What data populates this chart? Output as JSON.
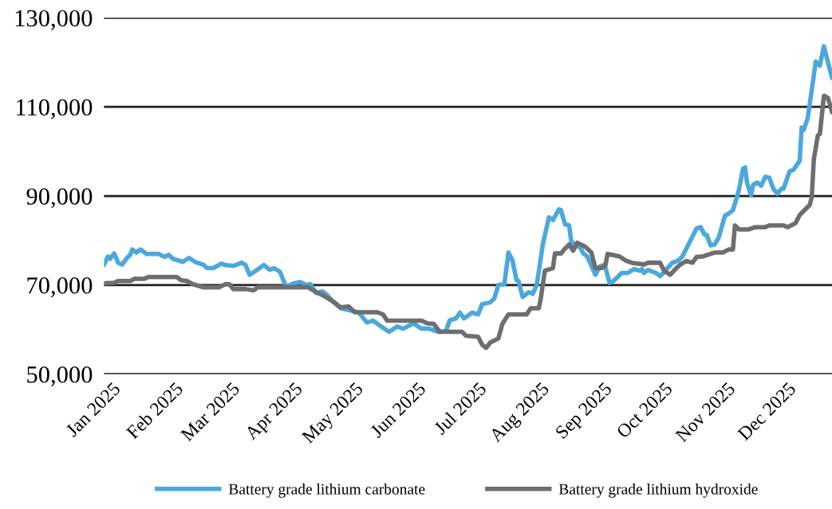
{
  "chart_data": {
    "type": "line",
    "xlim": [
      "2024-12-28",
      "2025-12-23"
    ],
    "ylim": [
      50000,
      130000
    ],
    "yticks": [
      {
        "value": 50000,
        "label": "50,000"
      },
      {
        "value": 70000,
        "label": "70,000"
      },
      {
        "value": 90000,
        "label": "90,000"
      },
      {
        "value": 110000,
        "label": "110,000"
      },
      {
        "value": 130000,
        "label": "130,000"
      }
    ],
    "xticks": [
      {
        "value": "2025-01-01",
        "label": "Jan 2025"
      },
      {
        "value": "2025-02-01",
        "label": "Feb 2025"
      },
      {
        "value": "2025-03-01",
        "label": "Mar 2025"
      },
      {
        "value": "2025-04-01",
        "label": "Apr 2025"
      },
      {
        "value": "2025-05-01",
        "label": "May 2025"
      },
      {
        "value": "2025-06-01",
        "label": "Jun 2025"
      },
      {
        "value": "2025-07-01",
        "label": "Jul 2025"
      },
      {
        "value": "2025-08-01",
        "label": "Aug 2025"
      },
      {
        "value": "2025-09-01",
        "label": "Sep 2025"
      },
      {
        "value": "2025-10-01",
        "label": "Oct 2025"
      },
      {
        "value": "2025-11-01",
        "label": "Nov 2025"
      },
      {
        "value": "2025-12-01",
        "label": "Dec 2025"
      }
    ],
    "grid": "y",
    "legend": "bottom",
    "marker": "none",
    "line_style": "solid",
    "series": [
      {
        "name": "Battery grade lithium carbonate",
        "color": "#4aa8de",
        "x": [
          "2024-12-28",
          "2024-12-30",
          "2024-12-31",
          "2025-01-02",
          "2025-01-04",
          "2025-01-06",
          "2025-01-08",
          "2025-01-10",
          "2025-01-11",
          "2025-01-13",
          "2025-01-15",
          "2025-01-18",
          "2025-01-24",
          "2025-01-27",
          "2025-01-29",
          "2025-01-31",
          "2025-02-05",
          "2025-02-08",
          "2025-02-11",
          "2025-02-15",
          "2025-02-17",
          "2025-02-20",
          "2025-02-24",
          "2025-02-26",
          "2025-03-02",
          "2025-03-06",
          "2025-03-08",
          "2025-03-10",
          "2025-03-13",
          "2025-03-17",
          "2025-03-20",
          "2025-03-22",
          "2025-03-25",
          "2025-03-28",
          "2025-04-01",
          "2025-04-04",
          "2025-04-07",
          "2025-04-09",
          "2025-04-12",
          "2025-04-15",
          "2025-04-17",
          "2025-04-20",
          "2025-04-24",
          "2025-04-29",
          "2025-05-03",
          "2025-05-07",
          "2025-05-10",
          "2025-05-14",
          "2025-05-18",
          "2025-05-22",
          "2025-05-25",
          "2025-05-30",
          "2025-06-03",
          "2025-06-07",
          "2025-06-11",
          "2025-06-15",
          "2025-06-17",
          "2025-06-20",
          "2025-06-22",
          "2025-06-24",
          "2025-06-28",
          "2025-07-01",
          "2025-07-03",
          "2025-07-07",
          "2025-07-09",
          "2025-07-11",
          "2025-07-14",
          "2025-07-16",
          "2025-07-18",
          "2025-07-20",
          "2025-07-21",
          "2025-07-23",
          "2025-07-26",
          "2025-07-28",
          "2025-07-30",
          "2025-08-02",
          "2025-08-05",
          "2025-08-07",
          "2025-08-10",
          "2025-08-11",
          "2025-08-13",
          "2025-08-15",
          "2025-08-16",
          "2025-08-18",
          "2025-08-20",
          "2025-08-22",
          "2025-08-24",
          "2025-08-28",
          "2025-08-30",
          "2025-09-01",
          "2025-09-02",
          "2025-09-04",
          "2025-09-06",
          "2025-09-10",
          "2025-09-13",
          "2025-09-16",
          "2025-09-19",
          "2025-09-20",
          "2025-09-21",
          "2025-09-23",
          "2025-09-27",
          "2025-09-29",
          "2025-10-01",
          "2025-10-05",
          "2025-10-08",
          "2025-10-10",
          "2025-10-12",
          "2025-10-14",
          "2025-10-17",
          "2025-10-19",
          "2025-10-21",
          "2025-10-22",
          "2025-10-24",
          "2025-10-26",
          "2025-10-28",
          "2025-10-31",
          "2025-11-02",
          "2025-11-04",
          "2025-11-06",
          "2025-11-07",
          "2025-11-09",
          "2025-11-10",
          "2025-11-11",
          "2025-11-13",
          "2025-11-14",
          "2025-11-16",
          "2025-11-18",
          "2025-11-20",
          "2025-11-22",
          "2025-11-24",
          "2025-11-26",
          "2025-11-28",
          "2025-11-29",
          "2025-12-02",
          "2025-12-04",
          "2025-12-07",
          "2025-12-08",
          "2025-12-09",
          "2025-12-11",
          "2025-12-15",
          "2025-12-17",
          "2025-12-19",
          "2025-12-21",
          "2025-12-23"
        ],
        "values": [
          74600,
          76400,
          75900,
          77100,
          75000,
          74600,
          75900,
          76800,
          78000,
          77300,
          78000,
          77000,
          77000,
          76300,
          76800,
          75900,
          75200,
          76100,
          75200,
          74600,
          73800,
          73800,
          74800,
          74500,
          74300,
          75000,
          74500,
          72300,
          73200,
          74500,
          73400,
          73800,
          73000,
          69600,
          70400,
          70700,
          70000,
          70200,
          68200,
          68600,
          67900,
          66400,
          64800,
          64300,
          63800,
          61600,
          62000,
          60700,
          59500,
          60700,
          60200,
          61400,
          60200,
          60200,
          59500,
          59600,
          62100,
          62500,
          63800,
          62500,
          63800,
          63400,
          65700,
          66100,
          67000,
          70000,
          70200,
          77300,
          75500,
          71100,
          70900,
          67300,
          68400,
          68000,
          70000,
          79100,
          85200,
          84600,
          87000,
          86800,
          83600,
          83400,
          80000,
          78600,
          78900,
          77100,
          76400,
          72300,
          74100,
          74500,
          73800,
          70500,
          70900,
          72700,
          72700,
          73600,
          73200,
          73600,
          72700,
          73400,
          72700,
          72000,
          72900,
          75000,
          75500,
          76400,
          78200,
          80000,
          82700,
          83000,
          81300,
          81300,
          78900,
          79100,
          80700,
          85500,
          86100,
          86800,
          89800,
          91400,
          96100,
          96400,
          92900,
          90200,
          92500,
          93000,
          92300,
          94300,
          94100,
          91600,
          90500,
          91600,
          91600,
          95500,
          95900,
          97900,
          105400,
          104800,
          107500,
          120200,
          119300,
          123600,
          120000,
          116600
        ]
      },
      {
        "name": "Battery grade lithium hydroxide",
        "color": "#6d6e70",
        "x": [
          "2024-12-29",
          "2025-01-02",
          "2025-01-04",
          "2025-01-10",
          "2025-01-12",
          "2025-01-17",
          "2025-01-19",
          "2025-02-02",
          "2025-02-04",
          "2025-02-07",
          "2025-02-10",
          "2025-02-15",
          "2025-02-23",
          "2025-02-26",
          "2025-02-28",
          "2025-03-02",
          "2025-03-08",
          "2025-03-12",
          "2025-03-14",
          "2025-04-08",
          "2025-04-12",
          "2025-04-16",
          "2025-04-21",
          "2025-04-24",
          "2025-04-28",
          "2025-05-01",
          "2025-05-12",
          "2025-05-15",
          "2025-05-17",
          "2025-06-03",
          "2025-06-06",
          "2025-06-09",
          "2025-06-12",
          "2025-06-23",
          "2025-06-25",
          "2025-07-01",
          "2025-07-03",
          "2025-07-05",
          "2025-07-07",
          "2025-07-11",
          "2025-07-13",
          "2025-07-16",
          "2025-07-25",
          "2025-07-27",
          "2025-07-31",
          "2025-08-01",
          "2025-08-03",
          "2025-08-07",
          "2025-08-08",
          "2025-08-11",
          "2025-08-13",
          "2025-08-15",
          "2025-08-17",
          "2025-08-19",
          "2025-08-23",
          "2025-08-26",
          "2025-08-28",
          "2025-08-31",
          "2025-09-02",
          "2025-09-03",
          "2025-09-05",
          "2025-09-09",
          "2025-09-12",
          "2025-09-15",
          "2025-09-21",
          "2025-09-23",
          "2025-09-29",
          "2025-10-01",
          "2025-10-04",
          "2025-10-07",
          "2025-10-09",
          "2025-10-12",
          "2025-10-15",
          "2025-10-17",
          "2025-10-20",
          "2025-10-24",
          "2025-10-26",
          "2025-10-30",
          "2025-11-02",
          "2025-11-04",
          "2025-11-05",
          "2025-11-07",
          "2025-11-12",
          "2025-11-15",
          "2025-11-20",
          "2025-11-22",
          "2025-11-29",
          "2025-12-01",
          "2025-12-05",
          "2025-12-07",
          "2025-12-10",
          "2025-12-12",
          "2025-12-13",
          "2025-12-14",
          "2025-12-16",
          "2025-12-17",
          "2025-12-19",
          "2025-12-21",
          "2025-12-23"
        ],
        "values": [
          70400,
          70500,
          70900,
          70900,
          71400,
          71400,
          71800,
          71800,
          71100,
          70900,
          70200,
          69500,
          69500,
          70200,
          70200,
          69100,
          69100,
          68800,
          69500,
          69500,
          68400,
          67500,
          66100,
          65000,
          65200,
          63900,
          63900,
          63400,
          62000,
          62000,
          61400,
          61300,
          59500,
          59500,
          58600,
          58400,
          56600,
          55900,
          57100,
          58000,
          61300,
          63400,
          63400,
          64800,
          64800,
          67000,
          73200,
          73800,
          77100,
          77100,
          78200,
          79100,
          77700,
          79500,
          78600,
          77300,
          73800,
          73800,
          74500,
          77000,
          76800,
          76400,
          75500,
          75000,
          74600,
          75000,
          75000,
          73200,
          72300,
          73800,
          74600,
          75400,
          75000,
          76300,
          76400,
          77000,
          77300,
          77300,
          78000,
          78000,
          83400,
          82500,
          82500,
          83000,
          83000,
          83400,
          83400,
          83000,
          83900,
          85700,
          87100,
          88000,
          89800,
          98200,
          103600,
          103900,
          112500,
          112000,
          108900
        ]
      }
    ]
  }
}
